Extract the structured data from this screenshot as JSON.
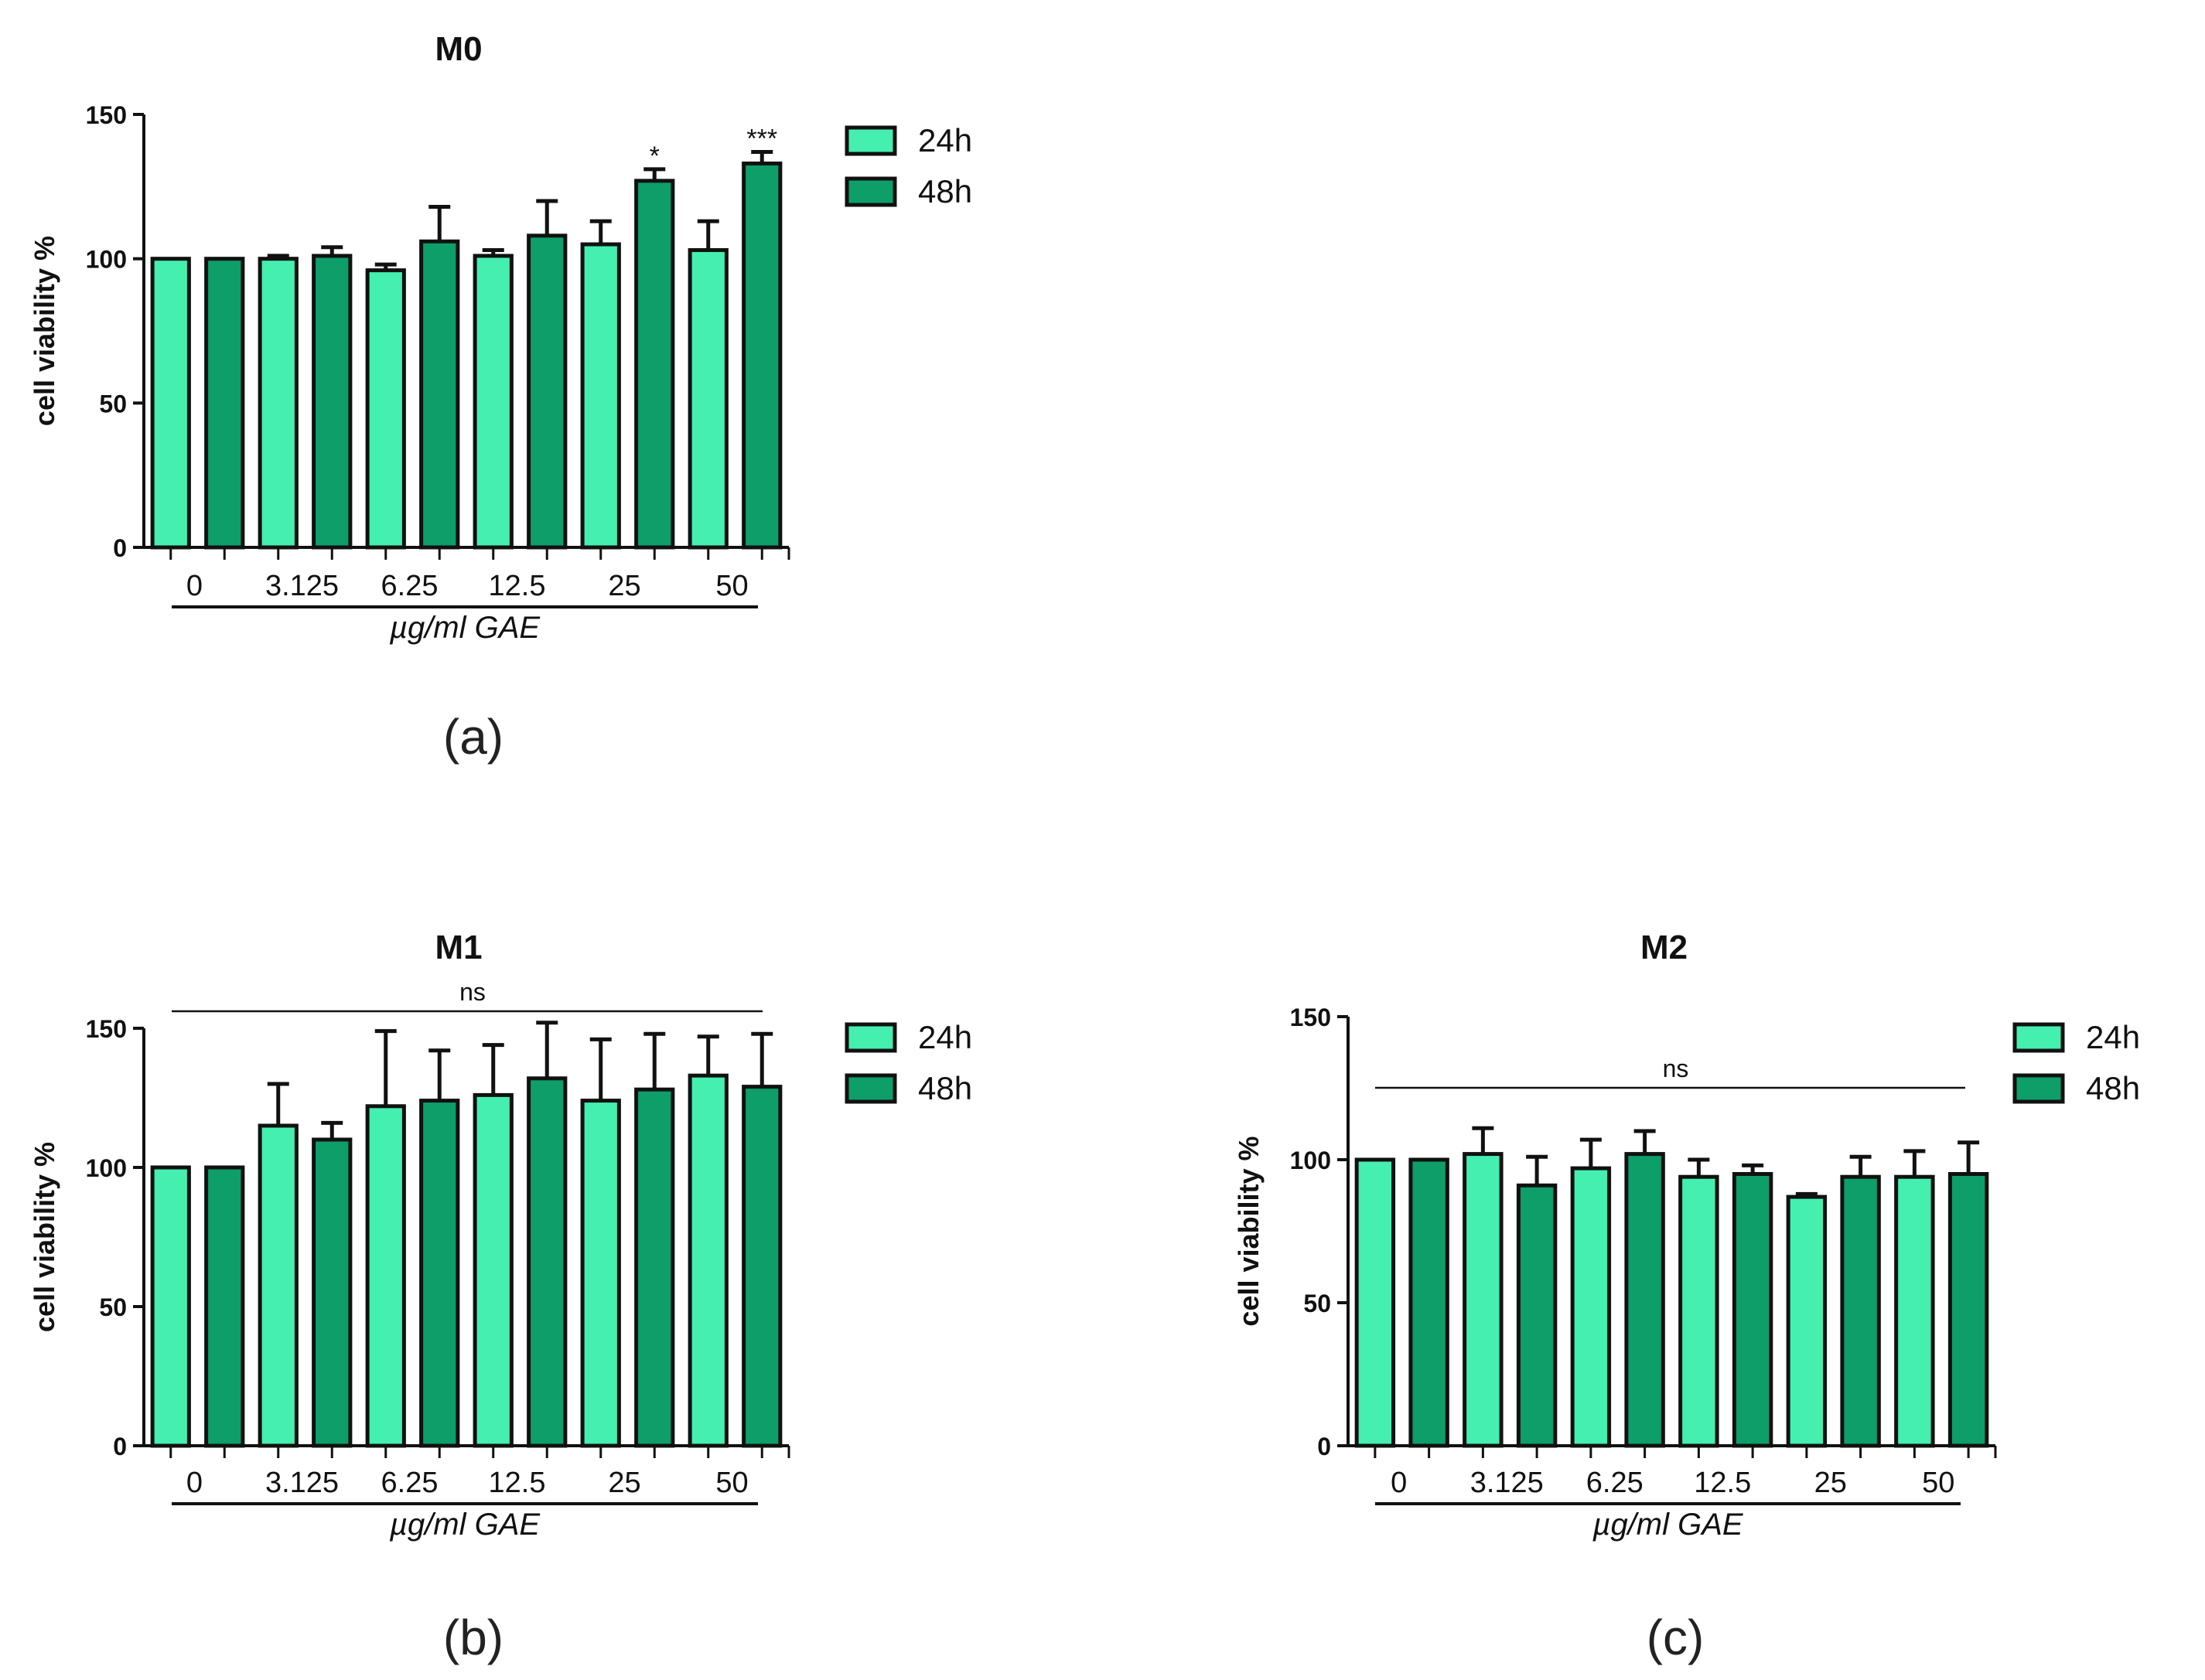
{
  "colors": {
    "h24": "#44efb0",
    "h48": "#0d9e6a",
    "stroke": "#111111"
  },
  "chart_data": [
    {
      "type": "bar",
      "panel": "(a)",
      "title": "M0",
      "ylabel": "cell viability %",
      "xlabel": "µg/ml GAE",
      "ylim": [
        0,
        150
      ],
      "yticks": [
        "0",
        "50",
        "100",
        "150"
      ],
      "categories": [
        "0",
        "3.125",
        "6.25",
        "12.5",
        "25",
        "50"
      ],
      "legend": [
        "24h",
        "48h"
      ],
      "series": [
        {
          "name": "24h",
          "values": [
            100,
            100,
            96,
            101,
            105,
            103
          ],
          "errors": [
            0,
            1,
            2,
            2,
            8,
            10
          ]
        },
        {
          "name": "48h",
          "values": [
            100,
            101,
            106,
            108,
            127,
            133
          ],
          "errors": [
            0,
            3,
            12,
            12,
            4,
            4
          ]
        }
      ],
      "annotations": [
        {
          "series": 1,
          "category": 4,
          "text": "*"
        },
        {
          "series": 1,
          "category": 5,
          "text": "***"
        }
      ],
      "ns": ""
    },
    {
      "type": "bar",
      "panel": "(b)",
      "title": "M1",
      "ylabel": "cell viability %",
      "xlabel": "µg/ml GAE",
      "ylim": [
        0,
        150
      ],
      "yticks": [
        "0",
        "50",
        "100",
        "150"
      ],
      "categories": [
        "0",
        "3.125",
        "6.25",
        "12.5",
        "25",
        "50"
      ],
      "legend": [
        "24h",
        "48h"
      ],
      "series": [
        {
          "name": "24h",
          "values": [
            100,
            115,
            122,
            126,
            124,
            133
          ],
          "errors": [
            0,
            15,
            27,
            18,
            22,
            14
          ]
        },
        {
          "name": "48h",
          "values": [
            100,
            110,
            124,
            132,
            128,
            129
          ],
          "errors": [
            0,
            6,
            18,
            20,
            20,
            19
          ]
        }
      ],
      "annotations": [],
      "ns": "ns"
    },
    {
      "type": "bar",
      "panel": "(c)",
      "title": "M2",
      "ylabel": "cell viability %",
      "xlabel": "µg/ml GAE",
      "ylim": [
        0,
        150
      ],
      "yticks": [
        "0",
        "50",
        "100",
        "150"
      ],
      "categories": [
        "0",
        "3.125",
        "6.25",
        "12.5",
        "25",
        "50"
      ],
      "legend": [
        "24h",
        "48h"
      ],
      "series": [
        {
          "name": "24h",
          "values": [
            100,
            102,
            97,
            94,
            87,
            94
          ],
          "errors": [
            0,
            9,
            10,
            6,
            1,
            9
          ]
        },
        {
          "name": "48h",
          "values": [
            100,
            91,
            102,
            95,
            94,
            95
          ],
          "errors": [
            0,
            10,
            8,
            3,
            7,
            11
          ]
        }
      ],
      "annotations": [],
      "ns": "ns"
    }
  ]
}
